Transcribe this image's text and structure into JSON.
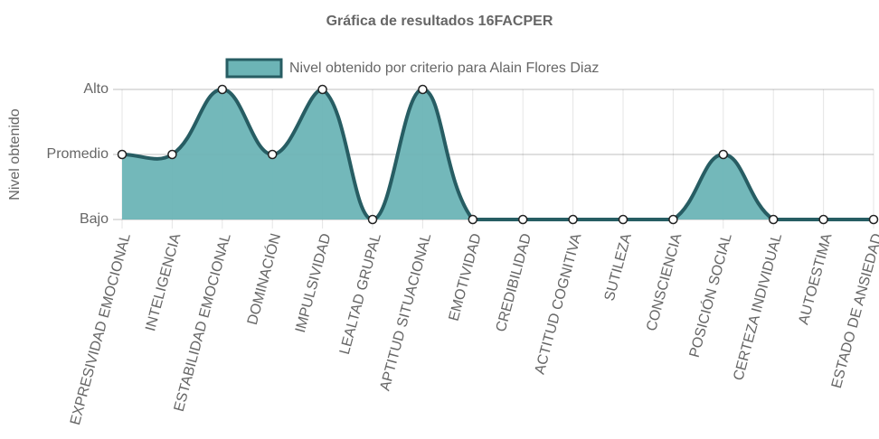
{
  "chart_data": {
    "type": "line",
    "title": "Gráfica de resultados 16FACPER",
    "y_label": "Nivel obtenido",
    "categories": [
      "EXPRESIVIDAD EMOCIONAL",
      "INTELIGENCIA",
      "ESTABILIDAD EMOCIONAL",
      "DOMINACIÓN",
      "IMPULSIVIDAD",
      "LEALTAD GRUPAL",
      "APTITUD SITUACIONAL",
      "EMOTIVIDAD",
      "CREDIBILIDAD",
      "ACTITUD COGNITIVA",
      "SUTILEZA",
      "CONSCIENCIA",
      "POSICIÓN SOCIAL",
      "CERTEZA INDIVIDUAL",
      "AUTOESTIMA",
      "ESTADO DE ANSIEDAD"
    ],
    "series": [
      {
        "name": "Nivel obtenido por criterio para Alain Flores Diaz",
        "color": "#275d63",
        "fill": "#6cb4b6",
        "values": [
          2,
          2,
          3,
          2,
          3,
          1,
          3,
          1,
          1,
          1,
          1,
          1,
          2,
          1,
          1,
          1
        ]
      }
    ],
    "ylim": [
      1,
      3
    ],
    "yticks": [
      {
        "value": 1,
        "label": "Bajo"
      },
      {
        "value": 2,
        "label": "Promedio"
      },
      {
        "value": 3,
        "label": "Alto"
      }
    ],
    "grid": true,
    "legend": "top"
  }
}
